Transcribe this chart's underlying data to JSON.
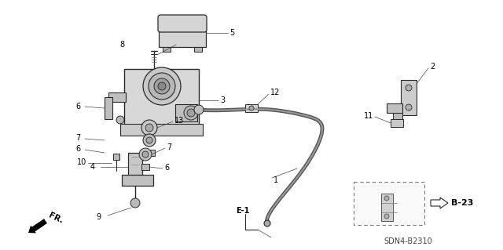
{
  "background_color": "#ffffff",
  "diagram_code": "SDN4-B2310",
  "ref_code": "B-23",
  "e1_label": "E-1",
  "fr_label": "FR.",
  "fig_width": 6.4,
  "fig_height": 3.19,
  "dpi": 100,
  "line_color": "#2a2a2a",
  "cable_color": "#444444",
  "gray1": "#c8c8c8",
  "gray2": "#e0e0e0",
  "gray3": "#a0a0a0"
}
